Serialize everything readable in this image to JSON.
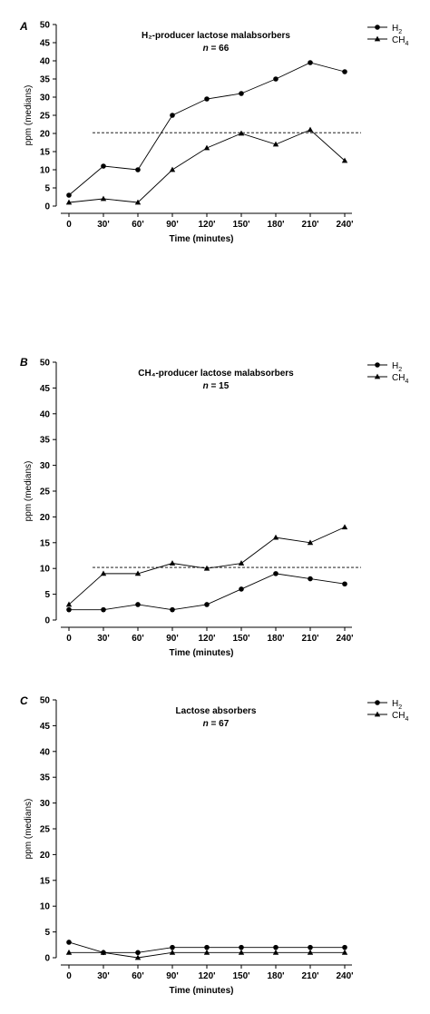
{
  "chart_data": [
    {
      "panel_label": "A",
      "type": "line",
      "title": "H₂-producer lactose malabsorbers",
      "subtitle_label": "n",
      "subtitle_value": " = 66",
      "xlabel": "Time (minutes)",
      "ylabel": "ppm (medians)",
      "categories": [
        "0",
        "30'",
        "60'",
        "90'",
        "120'",
        "150'",
        "180'",
        "210'",
        "240'"
      ],
      "yticks": [
        "0",
        "5",
        "10",
        "15",
        "20",
        "25",
        "30",
        "35",
        "40",
        "45",
        "50"
      ],
      "ylim": [
        0,
        50
      ],
      "legend": [
        "H",
        "CH"
      ],
      "legend_sub": [
        "2",
        "4"
      ],
      "reference_line": 20.2,
      "series": [
        {
          "marker": "circle",
          "values": [
            3,
            11,
            10,
            25,
            29.5,
            31,
            35,
            39.5,
            37
          ]
        },
        {
          "marker": "triangle",
          "values": [
            1,
            2,
            1,
            10,
            16,
            20,
            17,
            21,
            12.5
          ]
        }
      ]
    },
    {
      "panel_label": "B",
      "type": "line",
      "title": "CH₄-producer lactose malabsorbers",
      "subtitle_label": "n",
      "subtitle_value": " = 15",
      "xlabel": "Time (minutes)",
      "ylabel": "ppm (medians)",
      "categories": [
        "0",
        "30'",
        "60'",
        "90'",
        "120'",
        "150'",
        "180'",
        "210'",
        "240'"
      ],
      "yticks": [
        "0",
        "5",
        "10",
        "15",
        "20",
        "25",
        "30",
        "35",
        "40",
        "45",
        "50"
      ],
      "ylim": [
        0,
        50
      ],
      "legend": [
        "H",
        "CH"
      ],
      "legend_sub": [
        "2",
        "4"
      ],
      "reference_line": 10.2,
      "series": [
        {
          "marker": "circle",
          "values": [
            2,
            2,
            3,
            2,
            3,
            6,
            9,
            8,
            7
          ]
        },
        {
          "marker": "triangle",
          "values": [
            3,
            9,
            9,
            11,
            10,
            11,
            16,
            15,
            18
          ]
        }
      ]
    },
    {
      "panel_label": "C",
      "type": "line",
      "title": "Lactose absorbers",
      "subtitle_label": "n",
      "subtitle_value": " = 67",
      "xlabel": "Time (minutes)",
      "ylabel": "ppm (medians)",
      "categories": [
        "0",
        "30'",
        "60'",
        "90'",
        "120'",
        "150'",
        "180'",
        "210'",
        "240'"
      ],
      "yticks": [
        "0",
        "5",
        "10",
        "15",
        "20",
        "25",
        "30",
        "35",
        "40",
        "45",
        "50"
      ],
      "ylim": [
        0,
        50
      ],
      "legend": [
        "H",
        "CH"
      ],
      "legend_sub": [
        "2",
        "4"
      ],
      "reference_line": null,
      "series": [
        {
          "marker": "circle",
          "values": [
            3,
            1,
            1,
            2,
            2,
            2,
            2,
            2,
            2
          ]
        },
        {
          "marker": "triangle",
          "values": [
            1,
            1,
            0,
            1,
            1,
            1,
            1,
            1,
            1
          ]
        }
      ]
    }
  ]
}
